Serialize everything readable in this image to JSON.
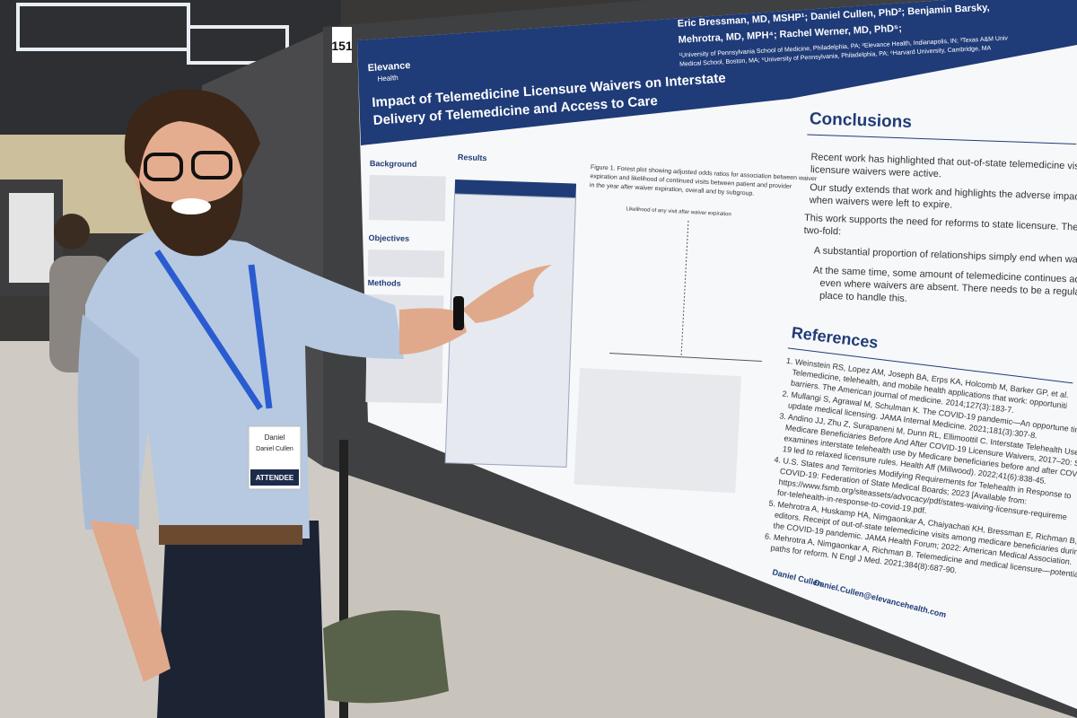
{
  "booth_number": "151",
  "poster": {
    "logo": [
      "Elevance",
      "Health"
    ],
    "title": [
      "Impact of Telemedicine Licensure Waivers on Interstate",
      "Delivery of Telemedicine and Access to Care"
    ],
    "authors": [
      "Eric Bressman, MD, MSHP¹; Daniel Cullen, PhD²; Benjamin Barsky,",
      "Mehrotra, MD, MPH⁴; Rachel Werner, MD, PhD⁵;"
    ],
    "affiliations": [
      "¹University of Pennsylvania School of Medicine, Philadelphia, PA; ²Elevance Health, Indianapolis, IN; ³Texas A&M Univ",
      "Medical School, Boston, MA; ⁵University of Pennsylvania, Philadelphia, PA; ⁶Harvard University, Cambridge, MA"
    ],
    "sections": {
      "background": "Background",
      "objectives": "Objectives",
      "methods": "Methods",
      "results": "Results"
    },
    "figure_caption": [
      "Figure 1. Forest plot showing adjusted odds ratios for association between waiver",
      "expiration and likelihood of continued visits between patient and provider",
      "in the year after waiver expiration, overall and by subgroup."
    ],
    "figure_axis": "Likelihood of any visit after waiver expiration",
    "conclusions": {
      "heading": "Conclusions",
      "bullets": [
        "Recent work has highlighted that out-of-state telemedicine visits",
        "licensure waivers were active.",
        "Our study extends that work and highlights the adverse impacts o",
        "when waivers were left to expire.",
        "This work supports the need for reforms to state licensure. The re",
        "two-fold:",
        "A substantial proportion of relationships simply end when waive",
        "At the same time, some amount of telemedicine continues across",
        "even where waivers are absent. There needs to be a regulatory fr",
        "place to handle this."
      ]
    },
    "references": {
      "heading": "References",
      "items": [
        "1. Weinstein RS, Lopez AM, Joseph BA, Erps KA, Holcomb M, Barker GP, et al.",
        "Telemedicine, telehealth, and mobile health applications that work: opportuniti",
        "barriers. The American journal of medicine. 2014;127(3):183-7.",
        "2. Mullangi S, Agrawal M, Schulman K. The COVID-19 pandemic—An opportune tim",
        "update medical licensing. JAMA Internal Medicine. 2021;181(3):307-8.",
        "3. Andino JJ, Zhu Z, Surapaneni M, Dunn RL, Ellimoottil C. Interstate Telehealth Use b",
        "Medicare Beneficiaries Before And After COVID-19 Licensure Waivers, 2017–20: S",
        "examines interstate telehealth use by Medicare beneficiaries before and after COV",
        "19 led to relaxed licensure rules. Health Aff (Millwood). 2022;41(6):838-45.",
        "4. U.S. States and Territories Modifying Requirements for Telehealth in Response to",
        "COVID-19: Federation of State Medical Boards; 2023 [Available from:",
        "https://www.fsmb.org/siteassets/advocacy/pdf/states-waiving-licensure-requireme",
        "for-telehealth-in-response-to-covid-19.pdf.",
        "5. Mehrotra A, Huskamp HA, Nimgaonkar A, Chaiyachati KH, Bressman E, Richman B,",
        "editors. Receipt of out-of-state telemedicine visits among medicare beneficiaries durin",
        "the COVID-19 pandemic. JAMA Health Forum; 2022: American Medical Association.",
        "6. Mehrotra A, Nimgaonkar A, Richman B. Telemedicine and medical licensure—potentia",
        "paths for reform. N Engl J Med. 2021;384(8):687-90."
      ]
    },
    "footer": {
      "name": "Daniel Cullen",
      "email": "Daniel.Cullen@elevancehealth.com"
    }
  },
  "badge": {
    "first_name": "Daniel",
    "full_name": "Daniel Cullen",
    "role": "ATTENDEE"
  }
}
